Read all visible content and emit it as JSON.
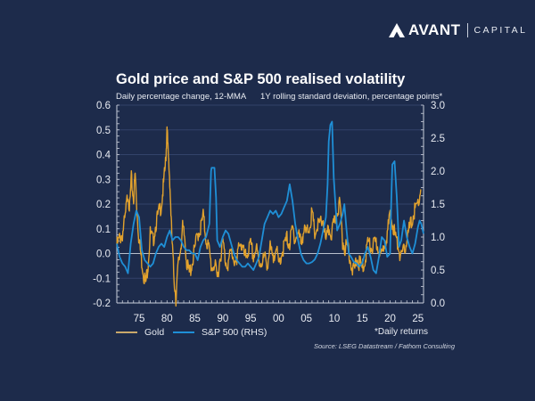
{
  "branding": {
    "brand": "AVANT",
    "suffix": "CAPITAL",
    "logo_icon": "avant-logo-icon"
  },
  "colors": {
    "background": "#1d2b4b",
    "gold": "#e2a22d",
    "sp500": "#1f8fd6",
    "axis": "#c9cfdb",
    "grid": "#33436a",
    "zero": "#b8bfcc"
  },
  "chart_data": {
    "type": "line",
    "title": "Gold price and S&P 500 realised volatility",
    "subtitle_left": "Daily percentage change, 12-MMA",
    "subtitle_right": "1Y rolling standard deviation, percentage points*",
    "xlabel": "",
    "ylabel_left": "Daily percentage change, 12-MMA",
    "ylabel_right": "1Y rolling standard deviation, percentage points",
    "xlim": [
      1971,
      2026
    ],
    "ylim_left": [
      -0.2,
      0.6
    ],
    "ylim_right": [
      0.0,
      3.0
    ],
    "x_ticks": [
      1975,
      1980,
      1985,
      1990,
      1995,
      2000,
      2005,
      2010,
      2015,
      2020,
      2025
    ],
    "x_tick_labels": [
      "75",
      "80",
      "85",
      "90",
      "95",
      "00",
      "05",
      "10",
      "15",
      "20",
      "25"
    ],
    "y_left_ticks": [
      0.6,
      0.5,
      0.4,
      0.3,
      0.2,
      0.1,
      0.0,
      -0.1,
      -0.2
    ],
    "y_left_tick_labels": [
      "0.6",
      "0.5",
      "0.4",
      "0.3",
      "0.2",
      "0.1",
      "0.0",
      "-0.1",
      "-0.2"
    ],
    "y_right_ticks": [
      3.0,
      2.5,
      2.0,
      1.5,
      1.0,
      0.5,
      0.0
    ],
    "y_right_tick_labels": [
      "3.0",
      "2.5",
      "2.0",
      "1.5",
      "1.0",
      "0.5",
      "0.0"
    ],
    "grid": true,
    "legend_position": "bottom-left",
    "series": [
      {
        "name": "Gold",
        "axis": "left",
        "color": "#e2a22d",
        "x": [
          1971.0,
          1971.5,
          1972.0,
          1972.5,
          1973.0,
          1973.3,
          1973.6,
          1974.0,
          1974.3,
          1974.6,
          1975.0,
          1975.4,
          1975.8,
          1976.2,
          1976.6,
          1977.0,
          1977.5,
          1978.0,
          1978.5,
          1979.0,
          1979.4,
          1979.8,
          1980.0,
          1980.2,
          1980.5,
          1980.8,
          1981.2,
          1981.6,
          1982.0,
          1982.4,
          1982.8,
          1983.2,
          1983.6,
          1984.0,
          1984.5,
          1985.0,
          1985.5,
          1986.0,
          1986.5,
          1987.0,
          1987.5,
          1988.0,
          1988.5,
          1989.0,
          1989.5,
          1990.0,
          1990.5,
          1991.0,
          1991.5,
          1992.0,
          1992.5,
          1993.0,
          1993.5,
          1994.0,
          1994.5,
          1995.0,
          1995.5,
          1996.0,
          1996.5,
          1997.0,
          1997.5,
          1998.0,
          1998.5,
          1999.0,
          1999.5,
          2000.0,
          2000.5,
          2001.0,
          2001.5,
          2002.0,
          2002.5,
          2003.0,
          2003.5,
          2004.0,
          2004.5,
          2005.0,
          2005.5,
          2006.0,
          2006.5,
          2007.0,
          2007.5,
          2008.0,
          2008.5,
          2009.0,
          2009.5,
          2010.0,
          2010.5,
          2011.0,
          2011.5,
          2012.0,
          2012.5,
          2013.0,
          2013.5,
          2014.0,
          2014.5,
          2015.0,
          2015.5,
          2016.0,
          2016.5,
          2017.0,
          2017.5,
          2018.0,
          2018.5,
          2019.0,
          2019.5,
          2020.0,
          2020.5,
          2021.0,
          2021.5,
          2022.0,
          2022.5,
          2023.0,
          2023.5,
          2024.0,
          2024.5,
          2025.0,
          2025.5
        ],
        "y": [
          0.03,
          0.06,
          0.08,
          0.14,
          0.25,
          0.18,
          0.3,
          0.22,
          0.32,
          0.18,
          0.05,
          -0.02,
          -0.08,
          -0.12,
          -0.04,
          0.08,
          0.05,
          0.12,
          0.16,
          0.2,
          0.28,
          0.38,
          0.52,
          0.4,
          0.3,
          0.1,
          -0.08,
          -0.18,
          -0.05,
          0.02,
          0.1,
          0.06,
          -0.05,
          -0.08,
          -0.04,
          0.02,
          0.08,
          0.1,
          0.15,
          0.06,
          0.02,
          -0.06,
          -0.04,
          -0.1,
          -0.02,
          0.05,
          -0.03,
          -0.04,
          0.01,
          -0.02,
          -0.05,
          0.06,
          0.02,
          -0.02,
          0.01,
          0.03,
          -0.01,
          0.02,
          -0.04,
          -0.03,
          -0.02,
          -0.04,
          0.02,
          -0.03,
          0.04,
          -0.05,
          0.0,
          0.03,
          0.06,
          0.04,
          0.1,
          0.06,
          0.08,
          0.05,
          0.09,
          0.08,
          0.11,
          0.16,
          0.08,
          0.11,
          0.12,
          0.14,
          0.04,
          0.1,
          0.08,
          0.12,
          0.18,
          0.2,
          0.05,
          0.02,
          0.03,
          -0.04,
          -0.08,
          -0.02,
          -0.04,
          -0.06,
          -0.03,
          0.05,
          0.02,
          0.03,
          0.04,
          0.02,
          -0.02,
          0.05,
          0.08,
          0.15,
          0.12,
          0.06,
          0.03,
          -0.02,
          0.01,
          0.06,
          0.1,
          0.14,
          0.18,
          0.2,
          0.26
        ]
      },
      {
        "name": "S&P 500 (RHS)",
        "axis": "right",
        "color": "#1f8fd6",
        "x": [
          1971.0,
          1971.5,
          1972.0,
          1972.5,
          1973.0,
          1973.5,
          1974.0,
          1974.5,
          1975.0,
          1975.5,
          1976.0,
          1976.5,
          1977.0,
          1977.5,
          1978.0,
          1978.5,
          1979.0,
          1979.5,
          1980.0,
          1980.5,
          1981.0,
          1981.5,
          1982.0,
          1982.5,
          1983.0,
          1983.5,
          1984.0,
          1984.5,
          1985.0,
          1985.5,
          1986.0,
          1986.5,
          1987.0,
          1987.6,
          1987.9,
          1988.0,
          1988.5,
          1988.8,
          1989.0,
          1989.5,
          1990.0,
          1990.5,
          1991.0,
          1991.5,
          1992.0,
          1992.5,
          1993.0,
          1993.5,
          1994.0,
          1994.5,
          1995.0,
          1995.5,
          1996.0,
          1996.5,
          1997.0,
          1997.5,
          1998.0,
          1998.5,
          1999.0,
          1999.5,
          2000.0,
          2000.5,
          2001.0,
          2001.5,
          2002.0,
          2002.5,
          2003.0,
          2003.5,
          2004.0,
          2004.5,
          2005.0,
          2005.5,
          2006.0,
          2006.5,
          2007.0,
          2007.5,
          2008.0,
          2008.5,
          2008.8,
          2009.0,
          2009.3,
          2009.6,
          2009.9,
          2010.2,
          2010.5,
          2011.0,
          2011.5,
          2011.8,
          2012.2,
          2012.6,
          2013.0,
          2013.5,
          2014.0,
          2014.5,
          2015.0,
          2015.5,
          2016.0,
          2016.5,
          2017.0,
          2017.5,
          2018.0,
          2018.5,
          2019.0,
          2019.5,
          2020.0,
          2020.2,
          2020.4,
          2020.8,
          2021.2,
          2021.6,
          2022.0,
          2022.5,
          2023.0,
          2023.5,
          2024.0,
          2024.5,
          2025.0,
          2025.3,
          2025.6,
          2026.0
        ],
        "y": [
          0.9,
          0.7,
          0.6,
          0.55,
          0.45,
          0.9,
          1.2,
          1.4,
          1.3,
          0.8,
          0.65,
          0.6,
          0.55,
          0.6,
          0.75,
          0.85,
          0.9,
          0.85,
          1.0,
          1.1,
          0.95,
          1.0,
          1.0,
          0.95,
          0.85,
          0.8,
          0.8,
          0.75,
          0.75,
          0.65,
          0.85,
          0.95,
          1.0,
          1.2,
          2.0,
          2.05,
          2.05,
          1.6,
          0.95,
          0.85,
          1.0,
          1.1,
          1.05,
          0.9,
          0.75,
          0.65,
          0.6,
          0.55,
          0.55,
          0.6,
          0.55,
          0.5,
          0.6,
          0.7,
          0.95,
          1.2,
          1.3,
          1.4,
          1.35,
          1.4,
          1.3,
          1.35,
          1.45,
          1.55,
          1.8,
          1.55,
          1.2,
          0.95,
          0.75,
          0.65,
          0.6,
          0.6,
          0.62,
          0.66,
          0.75,
          0.9,
          1.1,
          1.3,
          1.8,
          2.45,
          2.7,
          2.75,
          1.9,
          1.5,
          1.1,
          1.2,
          1.35,
          1.5,
          1.1,
          0.75,
          0.7,
          0.62,
          0.6,
          0.55,
          0.6,
          0.75,
          0.85,
          0.7,
          0.5,
          0.45,
          0.7,
          1.0,
          0.95,
          0.7,
          0.75,
          1.5,
          2.1,
          2.15,
          1.6,
          0.85,
          0.95,
          1.25,
          1.0,
          0.85,
          0.75,
          0.9,
          1.15,
          1.25,
          1.2,
          1.05
        ]
      }
    ]
  },
  "legend": [
    {
      "label": "Gold",
      "color": "#e2a22d"
    },
    {
      "label": "S&P 500 (RHS)",
      "color": "#1f8fd6"
    }
  ],
  "note": "*Daily returns",
  "source": "Source: LSEG Datastream / Fathom Consulting"
}
